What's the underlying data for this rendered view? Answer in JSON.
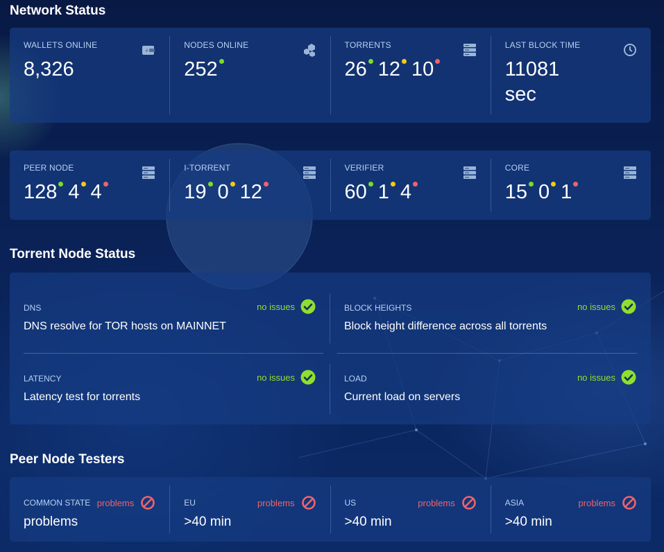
{
  "network_status": {
    "title": "Network Status",
    "row1": [
      {
        "label": "WALLETS ONLINE",
        "icon": "wallet-icon",
        "parts": [
          "8,326"
        ]
      },
      {
        "label": "NODES ONLINE",
        "icon": "cubes-icon",
        "parts": [
          "252"
        ],
        "dots": [
          "g"
        ]
      },
      {
        "label": "TORRENTS",
        "icon": "server-icon",
        "parts": [
          "26",
          "12",
          "10"
        ],
        "dots": [
          "g",
          "y",
          "r"
        ]
      },
      {
        "label": "LAST BLOCK TIME",
        "icon": "clock-icon",
        "parts": [
          "11081",
          "sec"
        ]
      }
    ],
    "row2": [
      {
        "label": "PEER NODE",
        "icon": "server-icon",
        "parts": [
          "128",
          "4",
          "4"
        ],
        "dots": [
          "g",
          "y",
          "r"
        ]
      },
      {
        "label": "I-TORRENT",
        "icon": "server-icon",
        "parts": [
          "19",
          "0",
          "12"
        ],
        "dots": [
          "g",
          "y",
          "r"
        ]
      },
      {
        "label": "VERIFIER",
        "icon": "server-icon",
        "parts": [
          "60",
          "1",
          "4"
        ],
        "dots": [
          "g",
          "y",
          "r"
        ]
      },
      {
        "label": "CORE",
        "icon": "server-icon",
        "parts": [
          "15",
          "0",
          "1"
        ],
        "dots": [
          "g",
          "y",
          "r"
        ]
      }
    ]
  },
  "torrent_node_status": {
    "title": "Torrent Node Status",
    "checks": [
      {
        "title": "DNS",
        "description": "DNS resolve for TOR hosts on MAINNET",
        "status": "no issues"
      },
      {
        "title": "BLOCK HEIGHTS",
        "description": "Block height difference across all torrents",
        "status": "no issues"
      },
      {
        "title": "LATENCY",
        "description": "Latency test for torrents",
        "status": "no issues"
      },
      {
        "title": "LOAD",
        "description": "Current load on servers",
        "status": "no issues"
      }
    ]
  },
  "peer_node_testers": {
    "title": "Peer Node Testers",
    "testers": [
      {
        "label": "COMMON STATE",
        "status": "problems",
        "value": "problems"
      },
      {
        "label": "EU",
        "status": "problems",
        "value": ">40 min"
      },
      {
        "label": "US",
        "status": "problems",
        "value": ">40 min"
      },
      {
        "label": "ASIA",
        "status": "problems",
        "value": ">40 min"
      }
    ]
  },
  "colors": {
    "ok": "#8fe02d",
    "warn": "#f4c918",
    "bad": "#f0636a",
    "label": "#b9d1f3"
  }
}
